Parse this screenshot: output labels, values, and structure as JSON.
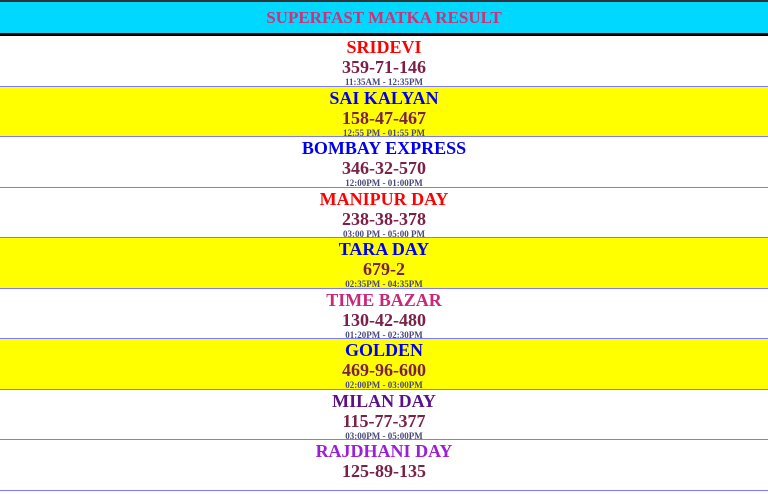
{
  "header": {
    "title": "SUPERFAST MATKA RESULT"
  },
  "colors": {
    "header_bg": "#00d8ff",
    "title": "#d0307a",
    "highlight_row": "#ffff00",
    "result": "#7b2046"
  },
  "markets": [
    {
      "name": "SRIDEVI",
      "result": "359-71-146",
      "time": "11:35AM - 12:35PM",
      "name_color": "#ff0000",
      "highlight": false
    },
    {
      "name": "SAI KALYAN",
      "result": "158-47-467",
      "time": "12:55 PM - 01:55 PM",
      "name_color": "#0000ee",
      "highlight": true
    },
    {
      "name": "BOMBAY EXPRESS",
      "result": "346-32-570",
      "time": "12:00PM - 01:00PM",
      "name_color": "#0000ee",
      "highlight": false
    },
    {
      "name": "MANIPUR DAY",
      "result": "238-38-378",
      "time": "03:00 PM - 05:00 PM",
      "name_color": "#ff0000",
      "highlight": false
    },
    {
      "name": "TARA DAY",
      "result": "679-2",
      "time": "02:35PM - 04:35PM",
      "name_color": "#0000ee",
      "highlight": true
    },
    {
      "name": "TIME BAZAR",
      "result": "130-42-480",
      "time": "01:20PM - 02:30PM",
      "name_color": "#c8287a",
      "highlight": false
    },
    {
      "name": "GOLDEN",
      "result": "469-96-600",
      "time": "02:00PM - 03:00PM",
      "name_color": "#0000ee",
      "highlight": true
    },
    {
      "name": "MILAN DAY",
      "result": "115-77-377",
      "time": "03:00PM - 05:00PM",
      "name_color": "#5a108a",
      "highlight": false
    },
    {
      "name": "RAJDHANI DAY",
      "result": "125-89-135",
      "time": "",
      "name_color": "#9b1fd6",
      "highlight": false
    }
  ]
}
